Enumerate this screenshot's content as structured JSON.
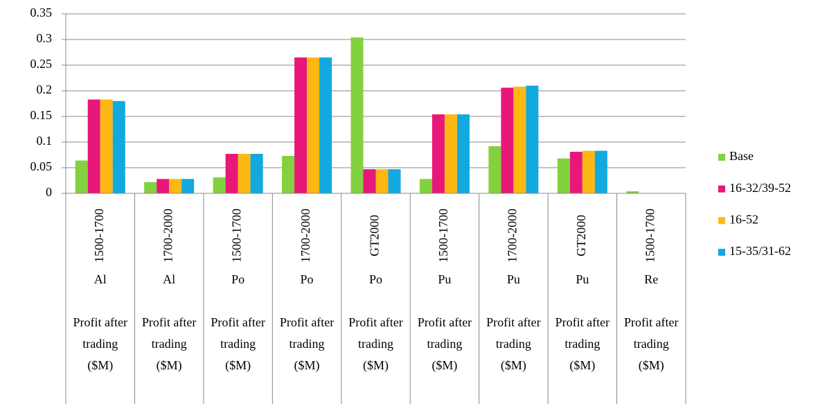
{
  "chart_data": {
    "type": "bar",
    "categories": [
      [
        "1500-1700",
        "Al",
        "Profit after trading ($M)"
      ],
      [
        "1700-2000",
        "Al",
        "Profit after trading ($M)"
      ],
      [
        "1500-1700",
        "Po",
        "Profit after trading ($M)"
      ],
      [
        "1700-2000",
        "Po",
        "Profit after trading ($M)"
      ],
      [
        "GT2000",
        "Po",
        "Profit after trading ($M)"
      ],
      [
        "1500-1700",
        "Pu",
        "Profit after trading ($M)"
      ],
      [
        "1700-2000",
        "Pu",
        "Profit after trading ($M)"
      ],
      [
        "GT2000",
        "Pu",
        "Profit after trading ($M)"
      ],
      [
        "1500-1700",
        "Re",
        "Profit after trading ($M)"
      ]
    ],
    "series": [
      {
        "name": "Base",
        "color": "#84d13f",
        "values": [
          0.064,
          0.022,
          0.031,
          0.073,
          0.304,
          0.028,
          0.092,
          0.068,
          0.004
        ]
      },
      {
        "name": "16-32/39-52",
        "color": "#e8177a",
        "values": [
          0.183,
          0.028,
          0.077,
          0.265,
          0.047,
          0.154,
          0.206,
          0.081,
          0
        ]
      },
      {
        "name": "16-52",
        "color": "#fdb813",
        "values": [
          0.183,
          0.028,
          0.077,
          0.265,
          0.047,
          0.154,
          0.208,
          0.083,
          0
        ]
      },
      {
        "name": "15-35/31-62",
        "color": "#11a9e0",
        "values": [
          0.18,
          0.028,
          0.077,
          0.265,
          0.047,
          0.154,
          0.21,
          0.083,
          0
        ]
      }
    ],
    "ylim": [
      0,
      0.35
    ],
    "yticks": [
      0,
      0.05,
      0.1,
      0.15,
      0.2,
      0.25,
      0.3,
      0.35
    ],
    "grid": true,
    "legend": "right"
  }
}
